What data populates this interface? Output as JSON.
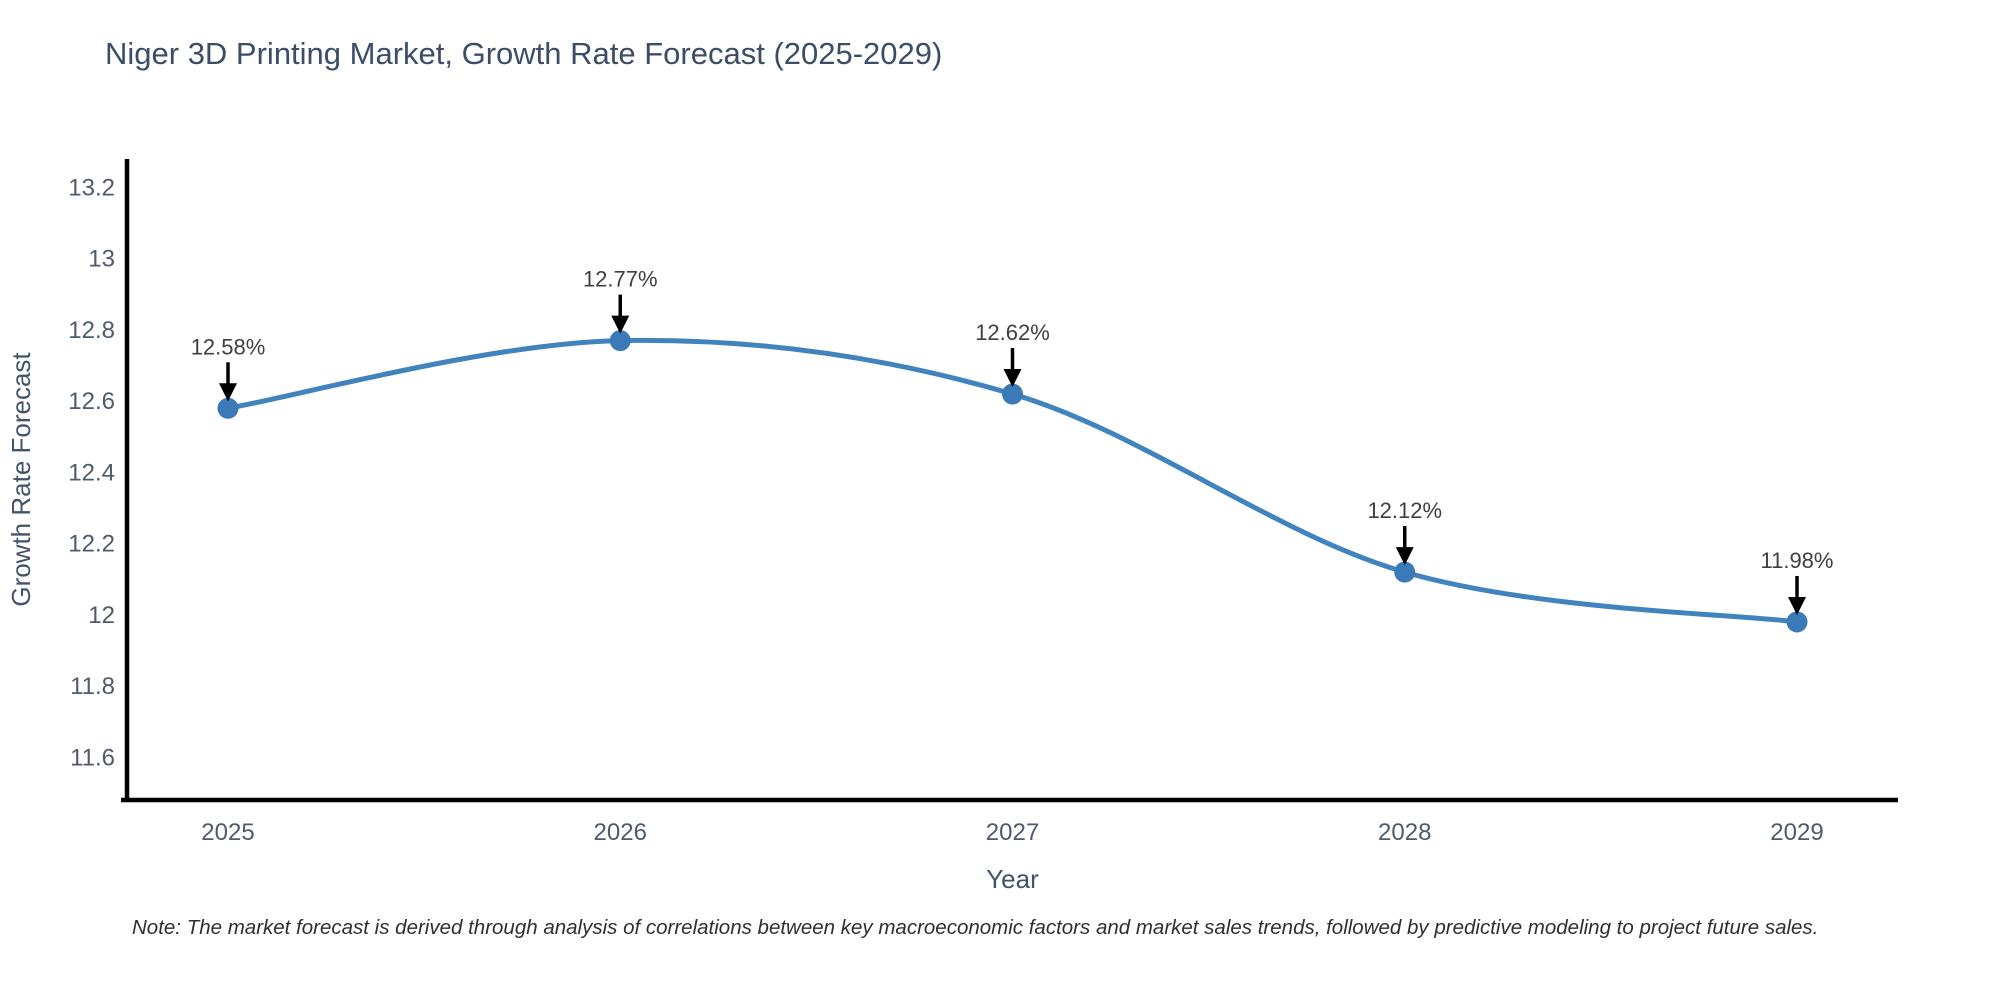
{
  "title": "Niger 3D Printing Market, Growth Rate Forecast (2025-2029)",
  "note": "Note: The market forecast is derived through analysis of correlations between key macroeconomic factors and market sales trends, followed by predictive modeling to project future sales.",
  "chart_data": {
    "type": "line",
    "title": "Niger 3D Printing Market, Growth Rate Forecast (2025-2029)",
    "xlabel": "Year",
    "ylabel": "Growth Rate Forecast",
    "categories": [
      "2025",
      "2026",
      "2027",
      "2028",
      "2029"
    ],
    "values": [
      12.58,
      12.77,
      12.62,
      12.12,
      11.98
    ],
    "point_labels": [
      "12.58%",
      "12.77%",
      "12.62%",
      "12.12%",
      "11.98%"
    ],
    "y_tick_values": [
      11.6,
      11.8,
      12,
      12.2,
      12.4,
      12.6,
      12.8,
      13,
      13.2
    ],
    "y_tick_labels": [
      "11.6",
      "11.8",
      "12",
      "12.2",
      "12.4",
      "12.6",
      "12.8",
      "13",
      "13.2"
    ],
    "ylim": [
      11.48,
      13.28
    ],
    "grid": false,
    "legend": false,
    "line_shape": "spline",
    "annotation_arrows": true,
    "colors": {
      "line": "#4183bd",
      "marker": "#3c7ab7",
      "axis": "#000000",
      "title_text": "#3c4d66",
      "tick_text": "#4e5b6b",
      "axis_label_text": "#42536a",
      "annotation_text": "#3f3f3f",
      "note_text": "#2f2f2f",
      "background": "#ffffff"
    }
  }
}
